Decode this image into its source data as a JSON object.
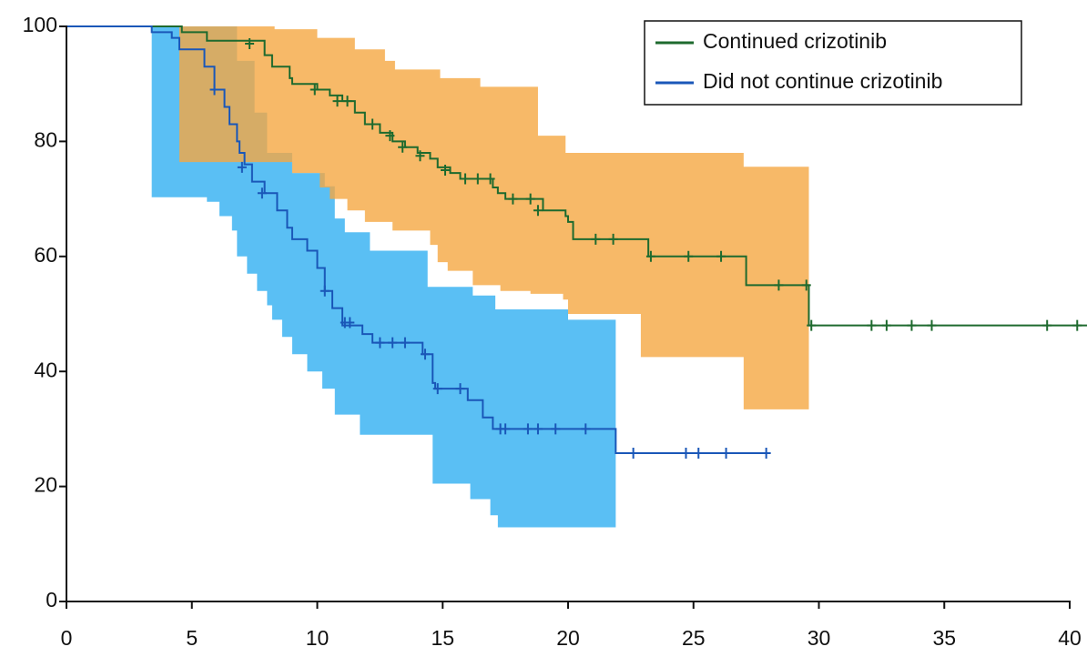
{
  "chart_data": {
    "type": "step",
    "xlim": [
      0,
      40
    ],
    "xticks": [
      0,
      5,
      10,
      15,
      20,
      25,
      30,
      35,
      40
    ],
    "ylim": [
      0,
      100
    ],
    "yticks": [
      0,
      20,
      40,
      60,
      80,
      100
    ],
    "legend": "top-right",
    "series": [
      {
        "name": "Continued crizotinib",
        "color": "#1e6a2e",
        "band_color": "#f5a742",
        "x": [
          0,
          4.6,
          5.6,
          7.9,
          8.2,
          8.9,
          9,
          10,
          10.5,
          11,
          11.5,
          11.9,
          12.5,
          13,
          13.5,
          14,
          14.5,
          14.8,
          15.3,
          15.7,
          17,
          17.2,
          17.5,
          19,
          19.9,
          20,
          20.2,
          23.2,
          27.1,
          29.6,
          40.7
        ],
        "values": [
          100,
          99,
          97.5,
          95,
          93,
          91,
          90,
          89,
          88,
          87,
          85,
          83,
          81.5,
          80,
          79,
          78,
          77,
          75.5,
          74.5,
          73.5,
          72,
          71,
          70,
          68,
          67,
          66,
          63,
          60,
          55,
          48,
          48
        ],
        "censor_x": [
          7.3,
          9.9,
          10.8,
          11.2,
          12.2,
          12.9,
          13.4,
          14.1,
          15.1,
          15.9,
          16.4,
          16.9,
          17.8,
          18.5,
          18.8,
          21.1,
          21.8,
          23.3,
          24.8,
          26.1,
          28.4,
          29.5,
          29.7,
          32.1,
          32.7,
          33.7,
          34.5,
          39.1,
          40.3
        ],
        "censor_values": [
          97,
          89,
          87,
          87,
          83,
          81,
          79,
          77.5,
          75,
          73.5,
          73.5,
          73.5,
          70,
          70,
          68,
          63,
          63,
          60,
          60,
          60,
          55,
          55,
          48,
          48,
          48,
          48,
          48,
          48,
          48
        ],
        "band_upper_x": [
          4.5,
          8.3,
          10,
          11.5,
          12.7,
          13.1,
          14.9,
          16.5,
          18.8,
          19.9,
          27,
          29.6
        ],
        "band_upper": [
          100,
          99.5,
          98,
          96,
          94,
          92.5,
          91,
          89.5,
          81,
          78,
          75.6,
          75.6
        ],
        "band_lower_x": [
          4.5,
          9,
          10.1,
          10.5,
          11.2,
          11.9,
          13,
          14.5,
          14.8,
          15.2,
          16.2,
          17.3,
          18.5,
          19.8,
          20,
          22.9,
          27,
          29.6
        ],
        "band_lower": [
          76.4,
          74.5,
          72,
          70,
          68,
          66,
          64.5,
          62,
          59,
          57.5,
          55,
          54,
          53.5,
          52.5,
          50,
          42.5,
          33.4,
          33.4
        ]
      },
      {
        "name": "Did not continue crizotinib",
        "color": "#1a57b8",
        "band_color": "#3db4f2",
        "x": [
          0,
          3.4,
          4.2,
          4.5,
          5.5,
          5.9,
          6.3,
          6.5,
          6.8,
          6.9,
          7.1,
          7.4,
          7.9,
          8.4,
          8.8,
          9,
          9.6,
          10,
          10.3,
          10.6,
          11,
          11.8,
          12.2,
          14.2,
          14.6,
          14.7,
          16,
          16.6,
          17,
          21.9,
          27.9
        ],
        "values": [
          100,
          99,
          98,
          96,
          93,
          89,
          86,
          83,
          80,
          78,
          76,
          73,
          71,
          68,
          65,
          63,
          61,
          58,
          54,
          51,
          48,
          46.5,
          45,
          43,
          38,
          37,
          35,
          32,
          30,
          25.8,
          25.8
        ],
        "censor_x": [
          5.9,
          7,
          7.8,
          10.3,
          11.1,
          11.3,
          12.5,
          13,
          13.5,
          14.3,
          14.8,
          15.7,
          17.3,
          17.5,
          18.4,
          18.8,
          19.5,
          20.7,
          22.6,
          24.7,
          25.2,
          26.3,
          27.9
        ],
        "censor_values": [
          89,
          75.5,
          71,
          54,
          48.5,
          48.5,
          45,
          45,
          45,
          43,
          37,
          37,
          30,
          30,
          30,
          30,
          30,
          30,
          25.8,
          25.8,
          25.8,
          25.8,
          25.8
        ],
        "band_upper_x": [
          3.4,
          6.8,
          7.5,
          8,
          9,
          10.3,
          10.7,
          11.1,
          12.1,
          14.4,
          16.2,
          17.1,
          20,
          21.9
        ],
        "band_upper": [
          100,
          94,
          85,
          78,
          74.5,
          72.2,
          66.6,
          64.2,
          61,
          54.7,
          53.2,
          50.8,
          49,
          49
        ],
        "band_lower_x": [
          3.4,
          5.6,
          6.1,
          6.6,
          6.8,
          7.2,
          7.6,
          8,
          8.2,
          8.6,
          9,
          9.6,
          10.2,
          10.7,
          11.7,
          14.6,
          16.1,
          16.9,
          17.2,
          21.9
        ],
        "band_lower": [
          70.3,
          69.5,
          67,
          64.5,
          60,
          57,
          54,
          51.5,
          49,
          46,
          43,
          40,
          37,
          32.5,
          29,
          20.5,
          17.8,
          15,
          12.9,
          12.9
        ]
      }
    ]
  }
}
